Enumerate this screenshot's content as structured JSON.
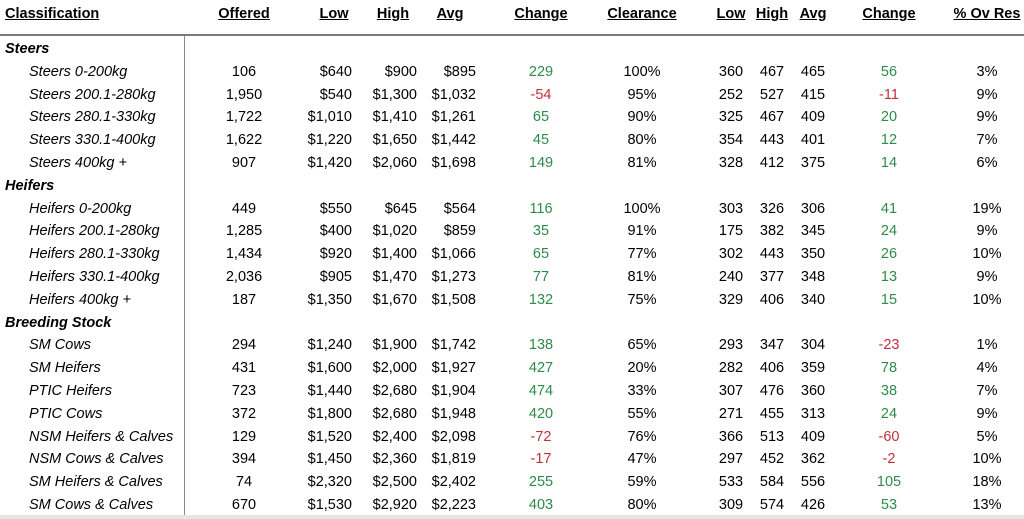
{
  "headers": {
    "classification": "Classification",
    "offered": "Offered",
    "low": "Low",
    "high": "High",
    "avg": "Avg",
    "change": "Change",
    "clearance": "Clearance",
    "low2": "Low",
    "high2": "High",
    "avg2": "Avg",
    "change2": "Change",
    "ovres": "% Ov Res"
  },
  "groups": [
    {
      "name": "Steers",
      "rows": [
        {
          "name": "Steers 0-200kg",
          "offered": "106",
          "low": "$640",
          "high": "$900",
          "avg": "$895",
          "change": "229",
          "clearance": "100%",
          "low2": "360",
          "high2": "467",
          "avg2": "465",
          "change2": "56",
          "ovres": "3%"
        },
        {
          "name": "Steers 200.1-280kg",
          "offered": "1,950",
          "low": "$540",
          "high": "$1,300",
          "avg": "$1,032",
          "change": "-54",
          "clearance": "95%",
          "low2": "252",
          "high2": "527",
          "avg2": "415",
          "change2": "-11",
          "ovres": "9%"
        },
        {
          "name": "Steers 280.1-330kg",
          "offered": "1,722",
          "low": "$1,010",
          "high": "$1,410",
          "avg": "$1,261",
          "change": "65",
          "clearance": "90%",
          "low2": "325",
          "high2": "467",
          "avg2": "409",
          "change2": "20",
          "ovres": "9%"
        },
        {
          "name": "Steers 330.1-400kg",
          "offered": "1,622",
          "low": "$1,220",
          "high": "$1,650",
          "avg": "$1,442",
          "change": "45",
          "clearance": "80%",
          "low2": "354",
          "high2": "443",
          "avg2": "401",
          "change2": "12",
          "ovres": "7%"
        },
        {
          "name": "Steers 400kg +",
          "offered": "907",
          "low": "$1,420",
          "high": "$2,060",
          "avg": "$1,698",
          "change": "149",
          "clearance": "81%",
          "low2": "328",
          "high2": "412",
          "avg2": "375",
          "change2": "14",
          "ovres": "6%"
        }
      ]
    },
    {
      "name": "Heifers",
      "rows": [
        {
          "name": "Heifers 0-200kg",
          "offered": "449",
          "low": "$550",
          "high": "$645",
          "avg": "$564",
          "change": "116",
          "clearance": "100%",
          "low2": "303",
          "high2": "326",
          "avg2": "306",
          "change2": "41",
          "ovres": "19%"
        },
        {
          "name": "Heifers 200.1-280kg",
          "offered": "1,285",
          "low": "$400",
          "high": "$1,020",
          "avg": "$859",
          "change": "35",
          "clearance": "91%",
          "low2": "175",
          "high2": "382",
          "avg2": "345",
          "change2": "24",
          "ovres": "9%"
        },
        {
          "name": "Heifers 280.1-330kg",
          "offered": "1,434",
          "low": "$920",
          "high": "$1,400",
          "avg": "$1,066",
          "change": "65",
          "clearance": "77%",
          "low2": "302",
          "high2": "443",
          "avg2": "350",
          "change2": "26",
          "ovres": "10%"
        },
        {
          "name": "Heifers 330.1-400kg",
          "offered": "2,036",
          "low": "$905",
          "high": "$1,470",
          "avg": "$1,273",
          "change": "77",
          "clearance": "81%",
          "low2": "240",
          "high2": "377",
          "avg2": "348",
          "change2": "13",
          "ovres": "9%"
        },
        {
          "name": "Heifers 400kg +",
          "offered": "187",
          "low": "$1,350",
          "high": "$1,670",
          "avg": "$1,508",
          "change": "132",
          "clearance": "75%",
          "low2": "329",
          "high2": "406",
          "avg2": "340",
          "change2": "15",
          "ovres": "10%"
        }
      ]
    },
    {
      "name": "Breeding Stock",
      "rows": [
        {
          "name": "SM Cows",
          "offered": "294",
          "low": "$1,240",
          "high": "$1,900",
          "avg": "$1,742",
          "change": "138",
          "clearance": "65%",
          "low2": "293",
          "high2": "347",
          "avg2": "304",
          "change2": "-23",
          "ovres": "1%"
        },
        {
          "name": "SM Heifers",
          "offered": "431",
          "low": "$1,600",
          "high": "$2,000",
          "avg": "$1,927",
          "change": "427",
          "clearance": "20%",
          "low2": "282",
          "high2": "406",
          "avg2": "359",
          "change2": "78",
          "ovres": "4%"
        },
        {
          "name": "PTIC Heifers",
          "offered": "723",
          "low": "$1,440",
          "high": "$2,680",
          "avg": "$1,904",
          "change": "474",
          "clearance": "33%",
          "low2": "307",
          "high2": "476",
          "avg2": "360",
          "change2": "38",
          "ovres": "7%"
        },
        {
          "name": "PTIC Cows",
          "offered": "372",
          "low": "$1,800",
          "high": "$2,680",
          "avg": "$1,948",
          "change": "420",
          "clearance": "55%",
          "low2": "271",
          "high2": "455",
          "avg2": "313",
          "change2": "24",
          "ovres": "9%"
        },
        {
          "name": "NSM Heifers & Calves",
          "offered": "129",
          "low": "$1,520",
          "high": "$2,400",
          "avg": "$2,098",
          "change": "-72",
          "clearance": "76%",
          "low2": "366",
          "high2": "513",
          "avg2": "409",
          "change2": "-60",
          "ovres": "5%"
        },
        {
          "name": "NSM Cows & Calves",
          "offered": "394",
          "low": "$1,450",
          "high": "$2,360",
          "avg": "$1,819",
          "change": "-17",
          "clearance": "47%",
          "low2": "297",
          "high2": "452",
          "avg2": "362",
          "change2": "-2",
          "ovres": "10%"
        },
        {
          "name": "SM Heifers & Calves",
          "offered": "74",
          "low": "$2,320",
          "high": "$2,500",
          "avg": "$2,402",
          "change": "255",
          "clearance": "59%",
          "low2": "533",
          "high2": "584",
          "avg2": "556",
          "change2": "105",
          "ovres": "18%"
        },
        {
          "name": "SM Cows & Calves",
          "offered": "670",
          "low": "$1,530",
          "high": "$2,920",
          "avg": "$2,223",
          "change": "403",
          "clearance": "80%",
          "low2": "309",
          "high2": "574",
          "avg2": "426",
          "change2": "53",
          "ovres": "13%"
        }
      ]
    }
  ],
  "colors": {
    "positive": "#2e8b4a",
    "negative": "#c0303b"
  }
}
